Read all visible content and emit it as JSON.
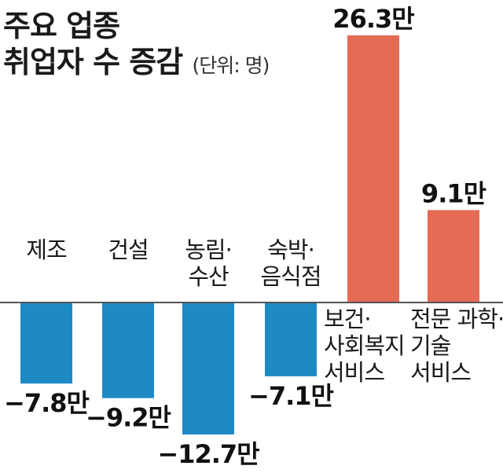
{
  "chart_data": {
    "type": "bar",
    "title_lines": [
      "주요 업종",
      "취업자 수 증감"
    ],
    "unit_label": "(단위: 명)",
    "categories": [
      [
        "제조"
      ],
      [
        "건설"
      ],
      [
        "농림·",
        "수산"
      ],
      [
        "숙박·",
        "음식점"
      ],
      [
        "보건·",
        "사회복지",
        "서비스"
      ],
      [
        "전문 과학·",
        "기술",
        "서비스"
      ]
    ],
    "values": [
      -78000,
      -92000,
      -127000,
      -71000,
      263000,
      91000
    ],
    "value_labels": [
      "−7.8만",
      "−9.2만",
      "−12.7만",
      "−7.1만",
      "26.3만",
      "9.1만"
    ],
    "ylim": [
      -127000,
      263000
    ],
    "xlabel": "",
    "ylabel": "",
    "grid": false,
    "colors": {
      "negative": "#1d8ac4",
      "positive": "#e56b55",
      "baseline": "#555555"
    }
  }
}
